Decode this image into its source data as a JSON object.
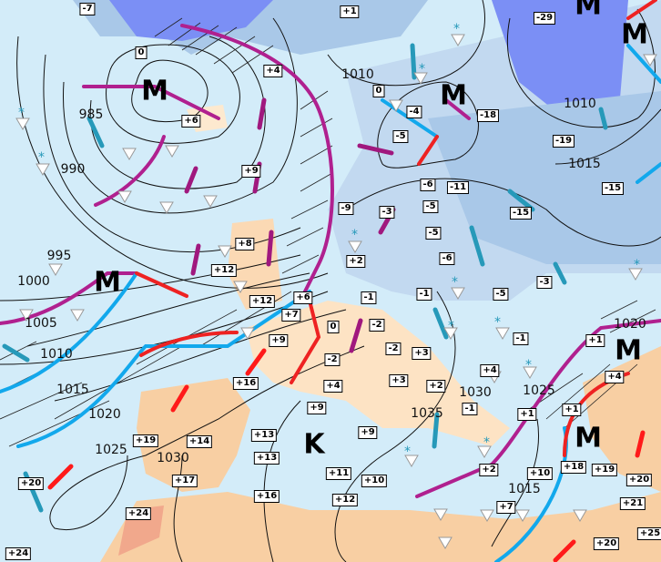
{
  "colors": {
    "sea": "#d3ecf9",
    "land_warm": "#fbd9b4",
    "land_cold": "#a9c8e8",
    "cold_core": "#7b8ff5",
    "occluded_front": "#b0208f",
    "cold_front": "#12a8ec",
    "warm_front": "#ee2222",
    "wind_arrow_cold": "#2699b9",
    "wind_arrow_warm": "#ff1a1a",
    "wind_arrow_occl": "#a0187e"
  },
  "pressure_centers": [
    "M",
    "M",
    "M",
    "M",
    "M",
    "M",
    "M",
    "K"
  ],
  "isobar_labels": [
    "985",
    "990",
    "995",
    "1000",
    "1005",
    "1010",
    "1015",
    "1020",
    "1025",
    "1030",
    "1035",
    "1030",
    "1025",
    "1015",
    "1020",
    "1010",
    "1015",
    "1010"
  ],
  "temperatures": [
    "-7",
    "0",
    "+4",
    "+6",
    "+9",
    "+8",
    "+12",
    "+1",
    "0",
    "-4",
    "-18",
    "-5",
    "-29",
    "-19",
    "-15",
    "-6",
    "-11",
    "-5",
    "-9",
    "-3",
    "-15",
    "-5",
    "-6",
    "+2",
    "-3",
    "+12",
    "+6",
    "+7",
    "-1",
    "-1",
    "-5",
    "0",
    "+9",
    "-2",
    "-2",
    "+3",
    "-1",
    "+16",
    "-2",
    "+4",
    "+3",
    "+2",
    "+4",
    "-1",
    "+1",
    "+1",
    "+1",
    "+4",
    "+9",
    "+9",
    "+13",
    "+13",
    "+19",
    "+14",
    "+17",
    "+11",
    "+10",
    "+18",
    "+19",
    "+10",
    "+2",
    "+7",
    "+16",
    "+12",
    "+20",
    "+24",
    "+24",
    "+20",
    "+21",
    "+25",
    "+20"
  ],
  "symbols": {
    "precip": "shower-triangle-icon",
    "snow": "snowflake-icon"
  }
}
